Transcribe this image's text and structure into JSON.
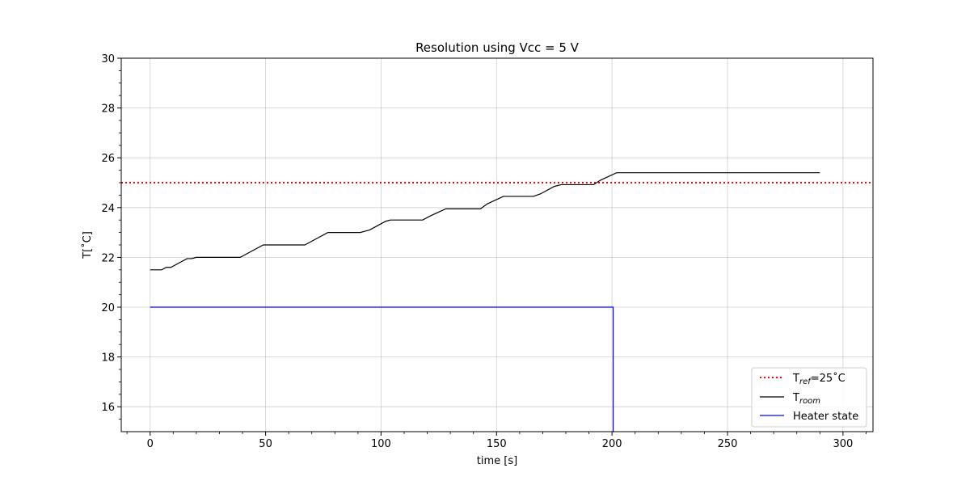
{
  "chart_data": {
    "type": "line",
    "title": "Resolution using Vcc = 5 V",
    "xlabel": "time [s]",
    "ylabel": "T[˚C]",
    "xlim": [
      -12.5,
      313
    ],
    "ylim": [
      15,
      30
    ],
    "xticks": [
      "0",
      "50",
      "100",
      "150",
      "200",
      "250",
      "300"
    ],
    "yticks": [
      "16",
      "18",
      "20",
      "22",
      "24",
      "26",
      "28",
      "30"
    ],
    "grid": true,
    "legend_position": "lower right",
    "reference": {
      "base": "T",
      "sub": "ref",
      "suffix": "=25˚C",
      "value": 25,
      "color": "#ff0000",
      "style": "dotted"
    },
    "series": [
      {
        "base": "T",
        "sub": "room",
        "color": "#000000",
        "points": [
          [
            0,
            21.5
          ],
          [
            5,
            21.5
          ],
          [
            7,
            21.6
          ],
          [
            9,
            21.6
          ],
          [
            11,
            21.7
          ],
          [
            14,
            21.85
          ],
          [
            16,
            21.95
          ],
          [
            18,
            21.95
          ],
          [
            20,
            22.0
          ],
          [
            39,
            22.0
          ],
          [
            42,
            22.15
          ],
          [
            49,
            22.5
          ],
          [
            67,
            22.5
          ],
          [
            70,
            22.65
          ],
          [
            77,
            23.0
          ],
          [
            91,
            23.0
          ],
          [
            93,
            23.05
          ],
          [
            95,
            23.1
          ],
          [
            100,
            23.35
          ],
          [
            102,
            23.45
          ],
          [
            104,
            23.5
          ],
          [
            118,
            23.5
          ],
          [
            121,
            23.65
          ],
          [
            128,
            23.95
          ],
          [
            143,
            23.95
          ],
          [
            146,
            24.15
          ],
          [
            153,
            24.45
          ],
          [
            166,
            24.45
          ],
          [
            169,
            24.55
          ],
          [
            172,
            24.7
          ],
          [
            175,
            24.85
          ],
          [
            178,
            24.92
          ],
          [
            192,
            24.92
          ],
          [
            195,
            25.1
          ],
          [
            202,
            25.4
          ],
          [
            290,
            25.4
          ]
        ]
      },
      {
        "name": "Heater state",
        "color": "#0000ff",
        "points": [
          [
            0,
            20
          ],
          [
            200.5,
            20
          ],
          [
            200.5,
            15
          ],
          [
            201,
            15
          ]
        ]
      }
    ]
  }
}
